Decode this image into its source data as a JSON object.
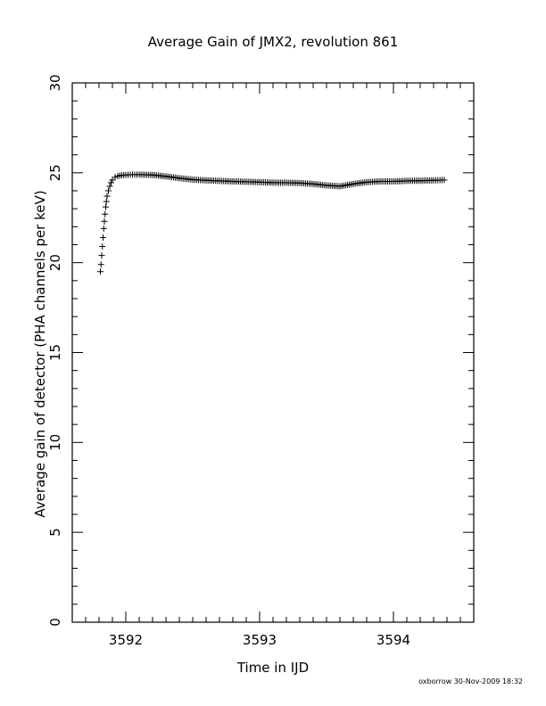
{
  "chart_data": {
    "type": "scatter",
    "title": "Average Gain of JMX2, revolution 861",
    "xlabel": "Time in IJD",
    "ylabel": "Average gain of detector (PHA channels per keV)",
    "xlim": [
      3591.6,
      3594.6
    ],
    "ylim": [
      0,
      30
    ],
    "x_ticks": [
      3592,
      3593,
      3594
    ],
    "y_ticks": [
      0,
      5,
      10,
      15,
      20,
      25,
      30
    ],
    "grid": false,
    "marker": "+",
    "color": "#000000",
    "series": [
      {
        "points": [
          [
            3591.81,
            19.5
          ],
          [
            3591.815,
            19.9
          ],
          [
            3591.82,
            20.4
          ],
          [
            3591.825,
            20.9
          ],
          [
            3591.83,
            21.4
          ],
          [
            3591.835,
            21.9
          ],
          [
            3591.84,
            22.3
          ],
          [
            3591.845,
            22.7
          ],
          [
            3591.85,
            23.1
          ],
          [
            3591.855,
            23.4
          ],
          [
            3591.86,
            23.7
          ],
          [
            3591.87,
            24.0
          ],
          [
            3591.88,
            24.25
          ],
          [
            3591.89,
            24.45
          ],
          [
            3591.9,
            24.6
          ],
          [
            3591.92,
            24.75
          ],
          [
            3591.94,
            24.82
          ],
          [
            3591.97,
            24.86
          ],
          [
            3592.0,
            24.88
          ],
          [
            3592.05,
            24.9
          ],
          [
            3592.1,
            24.9
          ],
          [
            3592.2,
            24.88
          ],
          [
            3592.3,
            24.8
          ],
          [
            3592.4,
            24.7
          ],
          [
            3592.5,
            24.62
          ],
          [
            3592.6,
            24.58
          ],
          [
            3592.7,
            24.55
          ],
          [
            3592.8,
            24.52
          ],
          [
            3592.9,
            24.5
          ],
          [
            3593.0,
            24.48
          ],
          [
            3593.1,
            24.45
          ],
          [
            3593.2,
            24.45
          ],
          [
            3593.3,
            24.43
          ],
          [
            3593.4,
            24.38
          ],
          [
            3593.5,
            24.3
          ],
          [
            3593.6,
            24.25
          ],
          [
            3593.7,
            24.38
          ],
          [
            3593.8,
            24.48
          ],
          [
            3593.9,
            24.52
          ],
          [
            3594.0,
            24.52
          ],
          [
            3594.1,
            24.55
          ],
          [
            3594.2,
            24.56
          ],
          [
            3594.3,
            24.58
          ],
          [
            3594.38,
            24.6
          ]
        ]
      }
    ]
  },
  "footer": "oxborrow 30-Nov-2009 18:32"
}
